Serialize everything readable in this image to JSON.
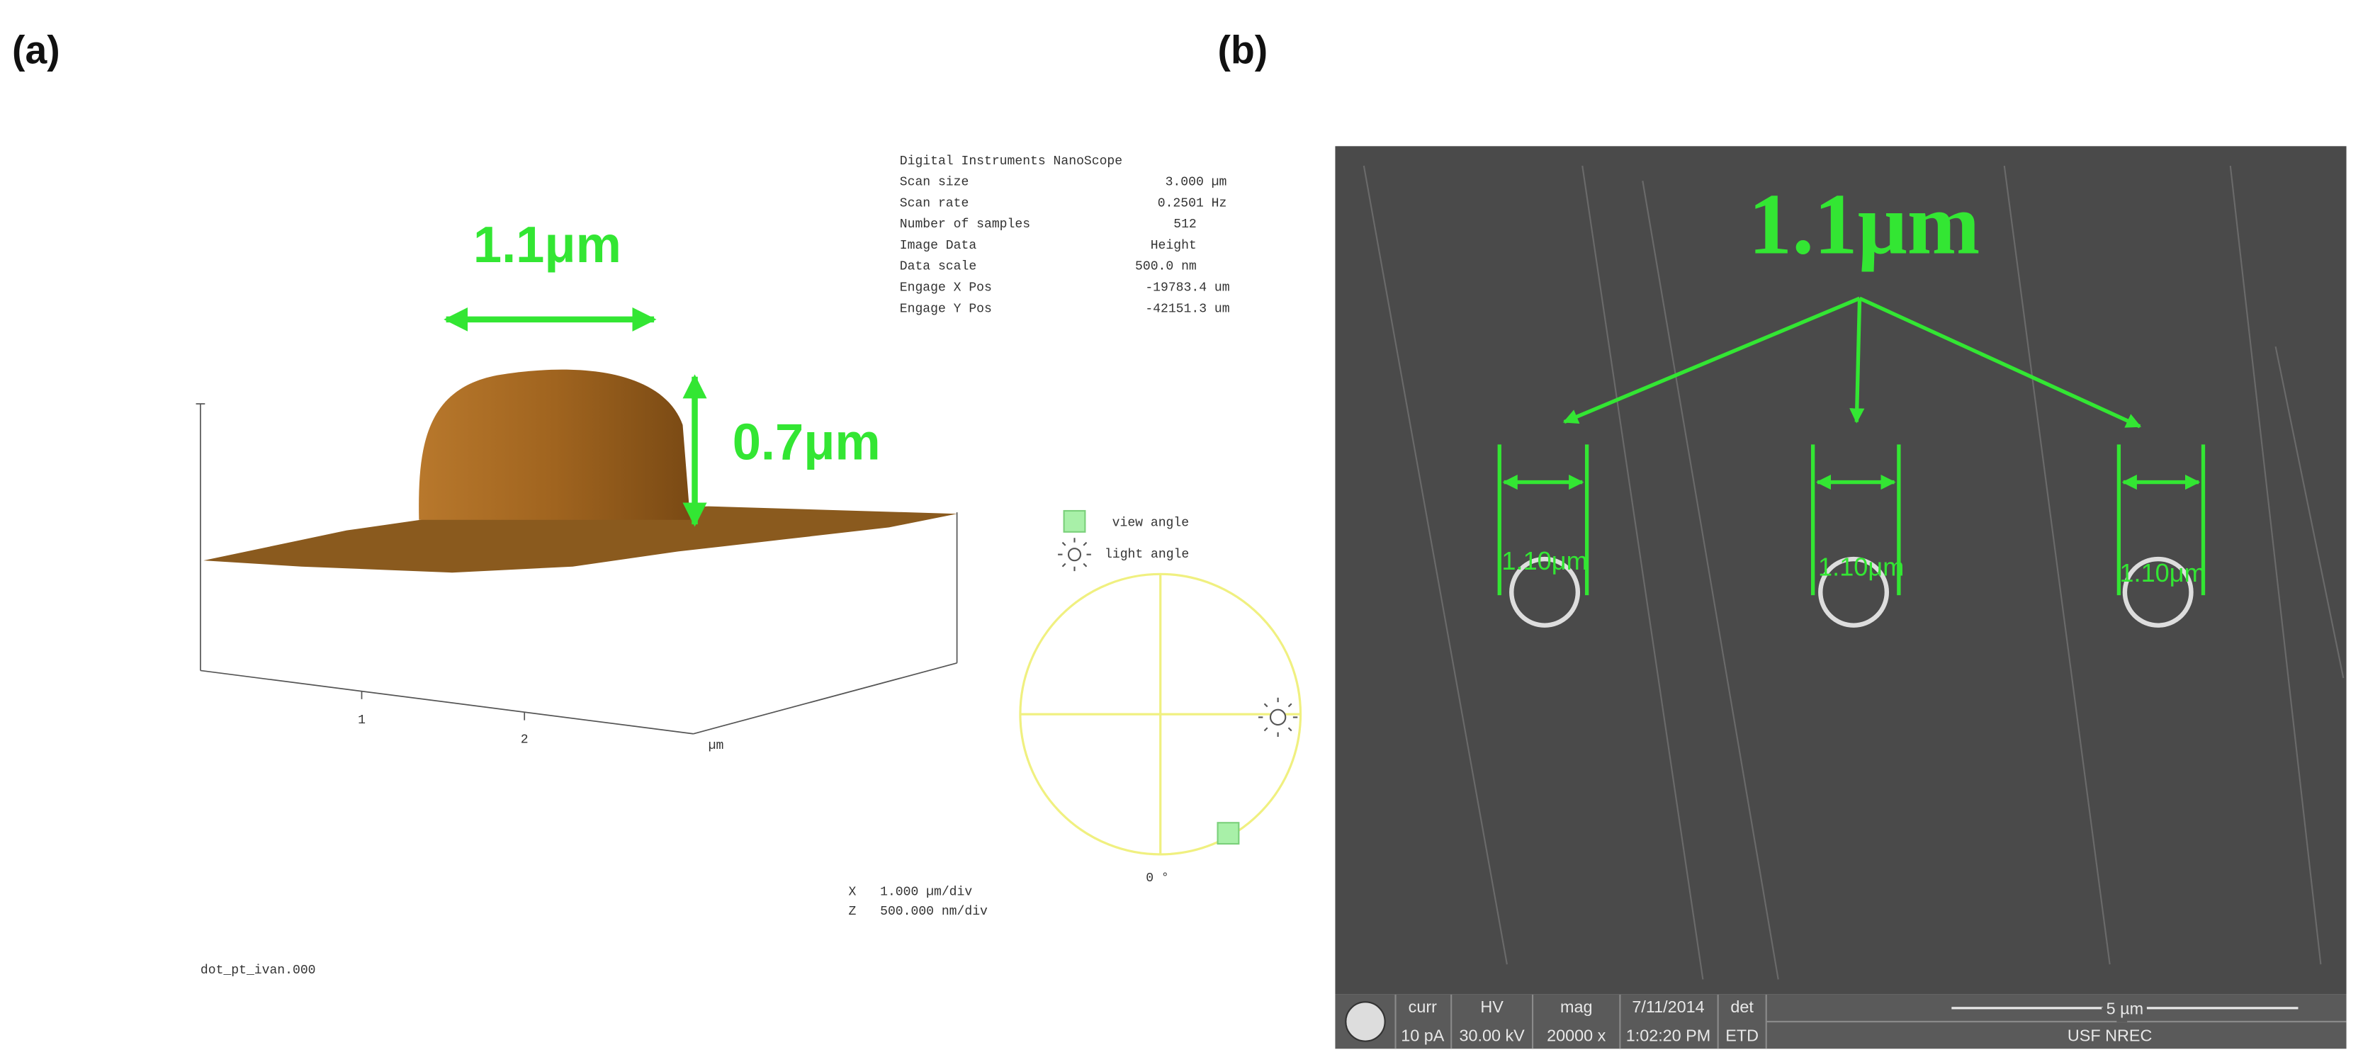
{
  "panel_a": {
    "label": "(a)",
    "width_annotation": "1.1μm",
    "height_annotation": "0.7μm",
    "instrument": "Digital Instruments NanoScope",
    "info": [
      {
        "name": "Scan size",
        "value": "3.000 µm"
      },
      {
        "name": "Scan rate",
        "value": "0.2501 Hz"
      },
      {
        "name": "Number of samples",
        "value": "512"
      },
      {
        "name": "Image Data",
        "value": "Height"
      },
      {
        "name": "Data scale",
        "value": "500.0 nm"
      },
      {
        "name": "Engage X Pos",
        "value": "-19783.4 um"
      },
      {
        "name": "Engage Y Pos",
        "value": "-42151.3 um"
      }
    ],
    "axis_ticks": [
      "1",
      "2"
    ],
    "axis_unit": "µm",
    "view_angle": "view angle",
    "light_angle": "light angle",
    "angle_zero": "0 °",
    "scales": [
      {
        "axis": "X",
        "value": "1.000 µm/div"
      },
      {
        "axis": "Z",
        "value": "500.000 nm/div"
      }
    ],
    "filename": "dot_pt_ivan.000"
  },
  "panel_b": {
    "label": "(b)",
    "annotation": "1.1μm",
    "feature_labels": [
      "1.10μm",
      "1.10μm",
      "1.10μm"
    ],
    "databar": {
      "headers": [
        "curr",
        "HV",
        "mag",
        "7/11/2014",
        "det"
      ],
      "values": [
        "10 pA",
        "30.00 kV",
        "20000 x",
        "1:02:20 PM",
        "ETD"
      ],
      "scale_bar": "5 µm",
      "lab": "USF NREC"
    }
  }
}
